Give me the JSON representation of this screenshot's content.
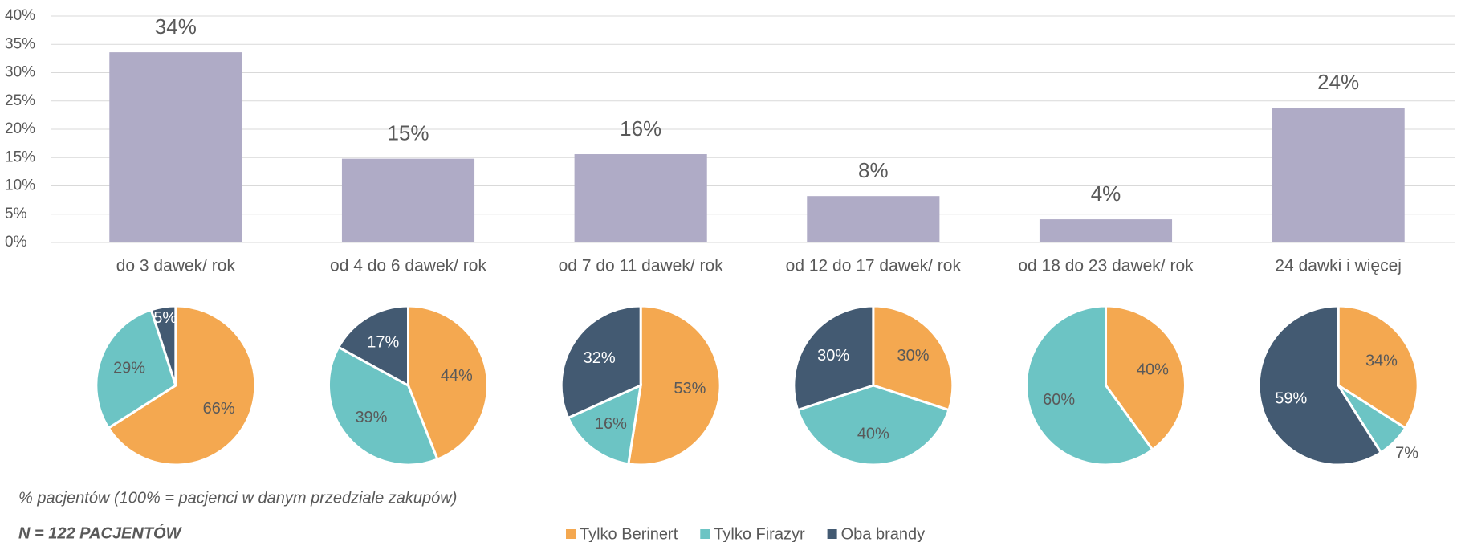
{
  "chart_data": [
    {
      "type": "bar",
      "color": "#afabc6",
      "grid": true,
      "categories": [
        "do 3 dawek/ rok",
        "od 4 do 6 dawek/ rok",
        "od 7 do 11 dawek/ rok",
        "od 12 do 17 dawek/ rok",
        "od 18 do 23 dawek/ rok",
        "24 dawki i więcej"
      ],
      "values": [
        33.6,
        14.8,
        15.6,
        8.2,
        4.1,
        23.8
      ],
      "value_labels": [
        "34%",
        "15%",
        "16%",
        "8%",
        "4%",
        "24%"
      ],
      "ylim": [
        0,
        40
      ],
      "yticks": [
        {
          "value": 0,
          "label": "0%"
        },
        {
          "value": 5,
          "label": "5%"
        },
        {
          "value": 10,
          "label": "10%"
        },
        {
          "value": 15,
          "label": "15%"
        },
        {
          "value": 20,
          "label": "20%"
        },
        {
          "value": 25,
          "label": "25%"
        },
        {
          "value": 30,
          "label": "30%"
        },
        {
          "value": 35,
          "label": "35%"
        },
        {
          "value": 40,
          "label": "40%"
        }
      ]
    },
    {
      "type": "pie",
      "values": [
        66,
        29,
        5
      ],
      "value_labels": [
        "66%",
        "29%",
        "5%"
      ]
    },
    {
      "type": "pie",
      "values": [
        44,
        39,
        17
      ],
      "value_labels": [
        "44%",
        "39%",
        "17%"
      ]
    },
    {
      "type": "pie",
      "values": [
        53,
        16,
        32
      ],
      "value_labels": [
        "53%",
        "16%",
        "32%"
      ]
    },
    {
      "type": "pie",
      "values": [
        30,
        40,
        30
      ],
      "value_labels": [
        "30%",
        "40%",
        "30%"
      ]
    },
    {
      "type": "pie",
      "values": [
        40,
        60
      ],
      "value_labels": [
        "40%",
        "60%"
      ]
    },
    {
      "type": "pie",
      "values": [
        34,
        7,
        59
      ],
      "value_labels": [
        "34%",
        "7%",
        "59%"
      ]
    }
  ],
  "legend": [
    {
      "name": "Tylko Berinert",
      "color": "#f4a850"
    },
    {
      "name": "Tylko Firazyr",
      "color": "#6cc4c4"
    },
    {
      "name": "Oba brandy",
      "color": "#435a72"
    }
  ],
  "note": "% pacjentów (100% = pacjenci w danym przedziale zakupów)",
  "sample": "N = 122 PACJENTÓW"
}
